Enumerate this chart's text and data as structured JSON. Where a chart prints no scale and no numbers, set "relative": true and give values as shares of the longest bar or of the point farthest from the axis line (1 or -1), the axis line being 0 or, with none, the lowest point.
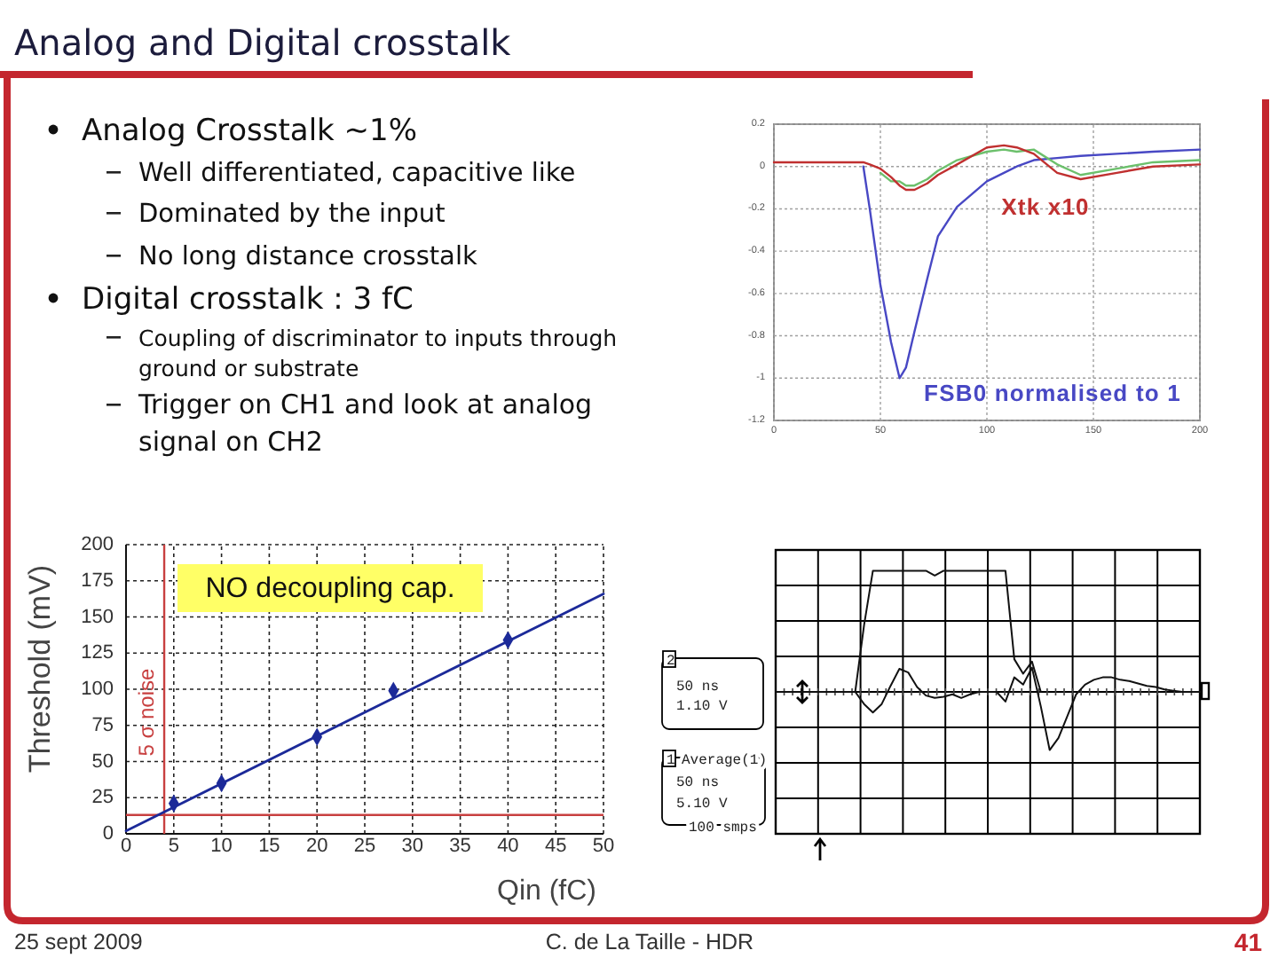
{
  "chart_data": [
    {
      "type": "other",
      "title": "Analog and Digital crosstalk",
      "annotations": [
        "Analog Crosstalk ~1%",
        "Well differentiated, capacitive like",
        "Dominated by the input",
        "No long distance crosstalk",
        "Digital crosstalk : 3 fC",
        "Coupling of discriminator to inputs through ground or substrate",
        "Trigger on CH1 and look at analog signal on CH2",
        "25 sept 2009",
        "C. de La Taille - HDR",
        "41"
      ]
    },
    {
      "type": "line",
      "x": [
        0,
        20,
        40,
        42,
        45,
        50,
        55,
        59,
        62,
        66,
        72,
        77,
        86,
        100,
        108,
        114,
        122,
        133,
        144,
        161,
        178,
        200
      ],
      "series": [
        {
          "name": "FSB0 normalised to 1",
          "color": "#4848c4",
          "values": [
            null,
            null,
            null,
            0,
            -0.2,
            -0.56,
            -0.83,
            -1,
            -0.95,
            -0.78,
            -0.53,
            -0.33,
            -0.19,
            -0.07,
            -0.03,
            0,
            0.03,
            0.04,
            0.05,
            0.06,
            0.07,
            0.08
          ]
        },
        {
          "color": "#6cc06c",
          "values": [
            null,
            null,
            null,
            null,
            null,
            -0.03,
            -0.07,
            -0.07,
            -0.09,
            -0.09,
            -0.06,
            -0.02,
            0.03,
            0.07,
            0.08,
            0.07,
            0.08,
            0.01,
            -0.04,
            -0.01,
            0.02,
            0.03
          ]
        },
        {
          "name": "Xtk x10",
          "color": "#c03030",
          "values": [
            0.02,
            0.02,
            0.02,
            0.02,
            0.01,
            -0.01,
            -0.05,
            -0.09,
            -0.11,
            -0.11,
            -0.08,
            -0.04,
            0.01,
            0.09,
            0.1,
            0.09,
            0.06,
            -0.03,
            -0.06,
            -0.03,
            0,
            0.01
          ]
        }
      ],
      "xlim": [
        0,
        200
      ],
      "xticks": [
        0,
        50,
        100,
        150,
        200
      ],
      "ylim": [
        -1.2,
        0.2
      ],
      "yticks": [
        -1.2,
        -1,
        -0.8,
        -0.6,
        -0.4,
        -0.2,
        0,
        0.2
      ],
      "grid": true
    },
    {
      "type": "scatter",
      "xlabel": "Qin (fC)",
      "ylabel": "Threshold (mV)",
      "series": [
        {
          "type": "scatter",
          "marker": "diamond",
          "color": "#1c2a99",
          "x": [
            5,
            10,
            20,
            28,
            40
          ],
          "values": [
            21,
            35,
            67,
            99,
            134
          ]
        },
        {
          "type": "line",
          "color": "#1c2a99",
          "x": [
            0,
            50
          ],
          "values": [
            2,
            166
          ]
        }
      ],
      "xlim": [
        0,
        50
      ],
      "xticks": [
        0,
        5,
        10,
        15,
        20,
        25,
        30,
        35,
        40,
        45,
        50
      ],
      "ylim": [
        0,
        200
      ],
      "yticks": [
        0,
        25,
        50,
        75,
        100,
        125,
        150,
        175,
        200
      ],
      "grid": true,
      "ref_lines": [
        {
          "axis": "x",
          "value": 4,
          "label": "5 σ noise",
          "color": "#c84040"
        },
        {
          "axis": "y",
          "value": 13,
          "color": "#c84040"
        }
      ],
      "annotations": [
        "NO decoupling cap."
      ]
    },
    {
      "type": "line",
      "relative": true,
      "categories": [
        null,
        null,
        null,
        null,
        null,
        null,
        null,
        null,
        null,
        null,
        null,
        null,
        null,
        null,
        null,
        null,
        null,
        null,
        null,
        null,
        null,
        null,
        null,
        null,
        null,
        null,
        null,
        null,
        null,
        null,
        null,
        null,
        null,
        null,
        null,
        null,
        null,
        null,
        null,
        null,
        null,
        null,
        null,
        null,
        null,
        null,
        null,
        null,
        null
      ],
      "grid": true,
      "series": [
        {
          "color": "#111111",
          "values": [
            null,
            null,
            null,
            null,
            null,
            null,
            null,
            null,
            null,
            0,
            0.55,
            1,
            1,
            1,
            1,
            1,
            1,
            1,
            0.96,
            1,
            1,
            1,
            1,
            1,
            1,
            1,
            1,
            0.27,
            0.15,
            0.25,
            0,
            null,
            null,
            null,
            null,
            null,
            null,
            null,
            null,
            null,
            null,
            null,
            null,
            null,
            null,
            null,
            null,
            null,
            null
          ]
        },
        {
          "color": "#111111",
          "values": [
            0,
            0,
            0,
            0,
            0,
            0,
            0,
            0,
            0,
            0,
            -0.1,
            -0.17,
            -0.1,
            0.05,
            0.19,
            0.16,
            0.04,
            -0.03,
            -0.05,
            -0.04,
            -0.02,
            -0.05,
            -0.02,
            0,
            0,
            0,
            -0.08,
            0.12,
            0.06,
            0.2,
            -0.12,
            -0.48,
            -0.38,
            -0.2,
            -0.02,
            0.06,
            0.1,
            0.12,
            0.12,
            0.1,
            0.09,
            0.07,
            0.05,
            0.04,
            0.02,
            0.01,
            0,
            0,
            0
          ]
        }
      ],
      "annotations": [
        "2",
        "50 ns",
        "1.10 V",
        "1",
        "Average(1)",
        "50 ns",
        "5.10 V",
        "100 smps"
      ]
    }
  ]
}
